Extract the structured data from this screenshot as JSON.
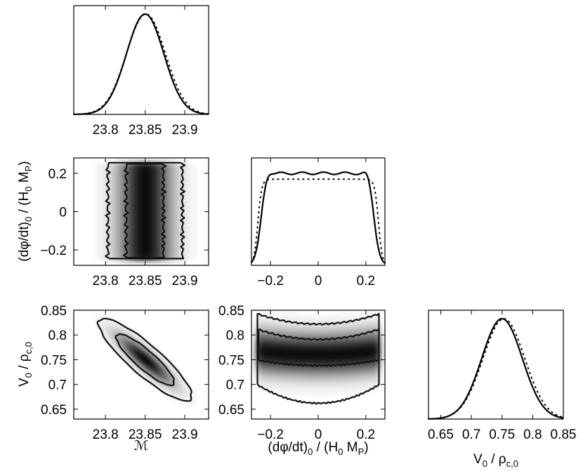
{
  "chart_data": [
    {
      "id": "m_marginal",
      "type": "line",
      "xlabel": "",
      "ylabel": "",
      "xlim": [
        23.76,
        23.93
      ],
      "xticks": [
        23.8,
        23.85,
        23.9
      ],
      "xtick_labels": [
        "23.8",
        "23.85",
        "23.9"
      ],
      "series": [
        {
          "style": "solid",
          "shape": "gaussian",
          "mean": 23.85,
          "sd": 0.0235
        },
        {
          "style": "dotted",
          "shape": "gaussian",
          "mean": 23.851,
          "sd": 0.0245
        }
      ]
    },
    {
      "id": "phidot_vs_m",
      "type": "heatmap",
      "xlabel": "",
      "ylabel": "(dφ/dt)₀ / (H₀ Mₚ)",
      "xlim": [
        23.76,
        23.93
      ],
      "ylim": [
        -0.28,
        0.28
      ],
      "xticks": [
        23.8,
        23.85,
        23.9
      ],
      "xtick_labels": [
        "23.8",
        "23.85",
        "23.9"
      ],
      "yticks": [
        -0.2,
        0,
        0.2
      ],
      "ytick_labels": [
        "−0.2",
        "0",
        "0.2"
      ],
      "density": {
        "x_mean": 23.85,
        "x_sd": 0.0235,
        "y_min": -0.255,
        "y_max": 0.255
      },
      "contours": [
        {
          "level": "68%",
          "x_range": [
            23.826,
            23.873
          ],
          "y_range": [
            -0.24,
            0.25
          ]
        },
        {
          "level": "95%",
          "x_range": [
            23.803,
            23.897
          ],
          "y_range": [
            -0.245,
            0.255
          ]
        }
      ]
    },
    {
      "id": "phidot_marginal",
      "type": "line",
      "xlabel": "",
      "ylabel": "",
      "xlim": [
        -0.28,
        0.28
      ],
      "xticks": [
        -0.2,
        0,
        0.2
      ],
      "xtick_labels": [
        "−0.2",
        "0",
        "0.2"
      ],
      "series": [
        {
          "style": "solid",
          "shape": "plateau",
          "x_edges": [
            -0.24,
            0.235
          ],
          "plateau": 0.93,
          "edge_width": 0.012
        },
        {
          "style": "dotted",
          "shape": "plateau",
          "x_edges": [
            -0.253,
            0.253
          ],
          "plateau": 0.87,
          "edge_width": 0.008
        }
      ]
    },
    {
      "id": "v0_vs_m",
      "type": "heatmap",
      "xlabel": "ℳ",
      "ylabel": "V₀ / ρc,0",
      "xlim": [
        23.76,
        23.93
      ],
      "ylim": [
        0.63,
        0.85
      ],
      "xticks": [
        23.8,
        23.85,
        23.9
      ],
      "xtick_labels": [
        "23.8",
        "23.85",
        "23.9"
      ],
      "yticks": [
        0.65,
        0.7,
        0.75,
        0.8,
        0.85
      ],
      "ytick_labels": [
        "0.65",
        "0.7",
        "0.75",
        "0.8",
        "0.85"
      ],
      "density": {
        "x_mean": 23.85,
        "x_sd": 0.024,
        "y_mean": 0.75,
        "y_sd": 0.034,
        "rho": -0.88
      },
      "contours": [
        {
          "level": "68%",
          "sigma": 1.52
        },
        {
          "level": "95%",
          "sigma": 2.45
        }
      ]
    },
    {
      "id": "v0_vs_phidot",
      "type": "heatmap",
      "xlabel": "(dφ/dt)₀ / (H₀ Mₚ)",
      "ylabel": "",
      "xlim": [
        -0.28,
        0.28
      ],
      "ylim": [
        0.63,
        0.85
      ],
      "xticks": [
        -0.2,
        0,
        0.2
      ],
      "xtick_labels": [
        "−0.2",
        "0",
        "0.2"
      ],
      "yticks": [
        0.65,
        0.7,
        0.75,
        0.8,
        0.85
      ],
      "ytick_labels": [
        "0.65",
        "0.7",
        "0.75",
        "0.8",
        "0.85"
      ],
      "density": {
        "x_min": -0.26,
        "x_max": 0.26,
        "y_center": 0.76,
        "y_center_edge": 0.768,
        "y_sd": 0.03
      },
      "contours": [
        {
          "level": "68%",
          "upper_center": 0.791,
          "upper_edge": 0.811,
          "lower_center": 0.738,
          "lower_edge": 0.749,
          "x_range": [
            -0.25,
            0.255
          ]
        },
        {
          "level": "95%",
          "upper_center": 0.822,
          "upper_edge": 0.842,
          "lower_center": 0.662,
          "lower_edge": 0.698,
          "x_range": [
            -0.255,
            0.255
          ]
        }
      ]
    },
    {
      "id": "v0_marginal",
      "type": "line",
      "xlabel": "V₀ / ρc,0",
      "ylabel": "",
      "xlim": [
        0.63,
        0.85
      ],
      "xticks": [
        0.65,
        0.7,
        0.75,
        0.8,
        0.85
      ],
      "xtick_labels": [
        "0.65",
        "0.7",
        "0.75",
        "0.8",
        "0.85"
      ],
      "series": [
        {
          "style": "solid",
          "shape": "gaussian",
          "mean": 0.75,
          "sd": 0.033
        },
        {
          "style": "dotted",
          "shape": "gaussian",
          "mean": 0.753,
          "sd": 0.034
        }
      ]
    }
  ],
  "axis_labels": {
    "phidot_ylabel": {
      "main": "(dφ/dt)",
      "sub0": "0",
      "mid": " / (H",
      "sub1": "0",
      "tail": " M",
      "sub2": "P",
      "close": ")"
    },
    "v0_ylabel": {
      "main": "V",
      "sub0": "0",
      "mid": " / ρ",
      "sub1": "c,0"
    },
    "m_xlabel": "ℳ",
    "phidot_xlabel": {
      "main": "(dφ/dt)",
      "sub0": "0",
      "mid": " / (H",
      "sub1": "0",
      "tail": " M",
      "sub2": "P",
      "close": ")"
    },
    "v0_xlabel": {
      "main": "V",
      "sub0": "0",
      "mid": " / ρ",
      "sub1": "c,0"
    }
  }
}
